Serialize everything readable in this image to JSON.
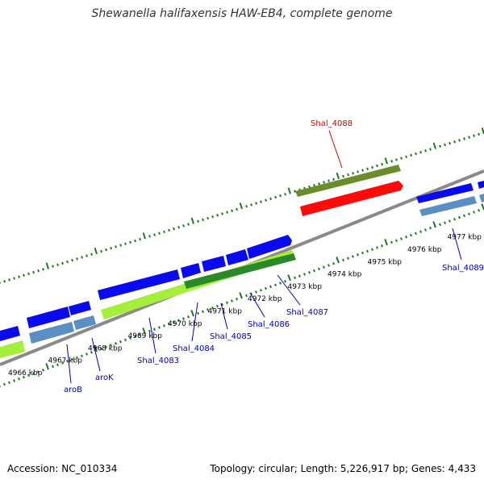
{
  "title": "Shewanella halifaxensis HAW-EB4, complete genome",
  "footer": {
    "accession": "Accession: NC_010334",
    "summary": "Topology: circular; Length: 5,226,917 bp; Genes: 4,433"
  },
  "colors": {
    "backbone": "#8a8a8a",
    "gene_forward": "#0a0af0",
    "gene_reverse": "#0a0af0",
    "cds_forward": "#5a8fc4",
    "cds_green": "#a6ee3c",
    "cds_darkgreen": "#2a8a2a",
    "rrna_olive": "#6b8c2b",
    "highlight_red": "#ff0a0a",
    "tick": "#1f7a1f",
    "label_blue": "#0000aa",
    "label_red": "#cc0000"
  },
  "kbp_labels": [
    "4966 kbp",
    "4967 kbp",
    "4968 kbp",
    "4969 kbp",
    "4970 kbp",
    "4971 kbp",
    "4972 kbp",
    "4973 kbp",
    "4974 kbp",
    "4975 kbp",
    "4976 kbp",
    "4977 kbp"
  ],
  "gene_labels": [
    {
      "text": "Shal_4088",
      "color": "red"
    },
    {
      "text": "Shal_4089",
      "color": "blue"
    },
    {
      "text": "Shal_4087",
      "color": "blue"
    },
    {
      "text": "Shal_4086",
      "color": "blue"
    },
    {
      "text": "Shal_4085",
      "color": "blue"
    },
    {
      "text": "Shal_4084",
      "color": "blue"
    },
    {
      "text": "Shal_4083",
      "color": "blue"
    },
    {
      "text": "aroK",
      "color": "blue"
    },
    {
      "text": "aroB",
      "color": "blue"
    }
  ]
}
